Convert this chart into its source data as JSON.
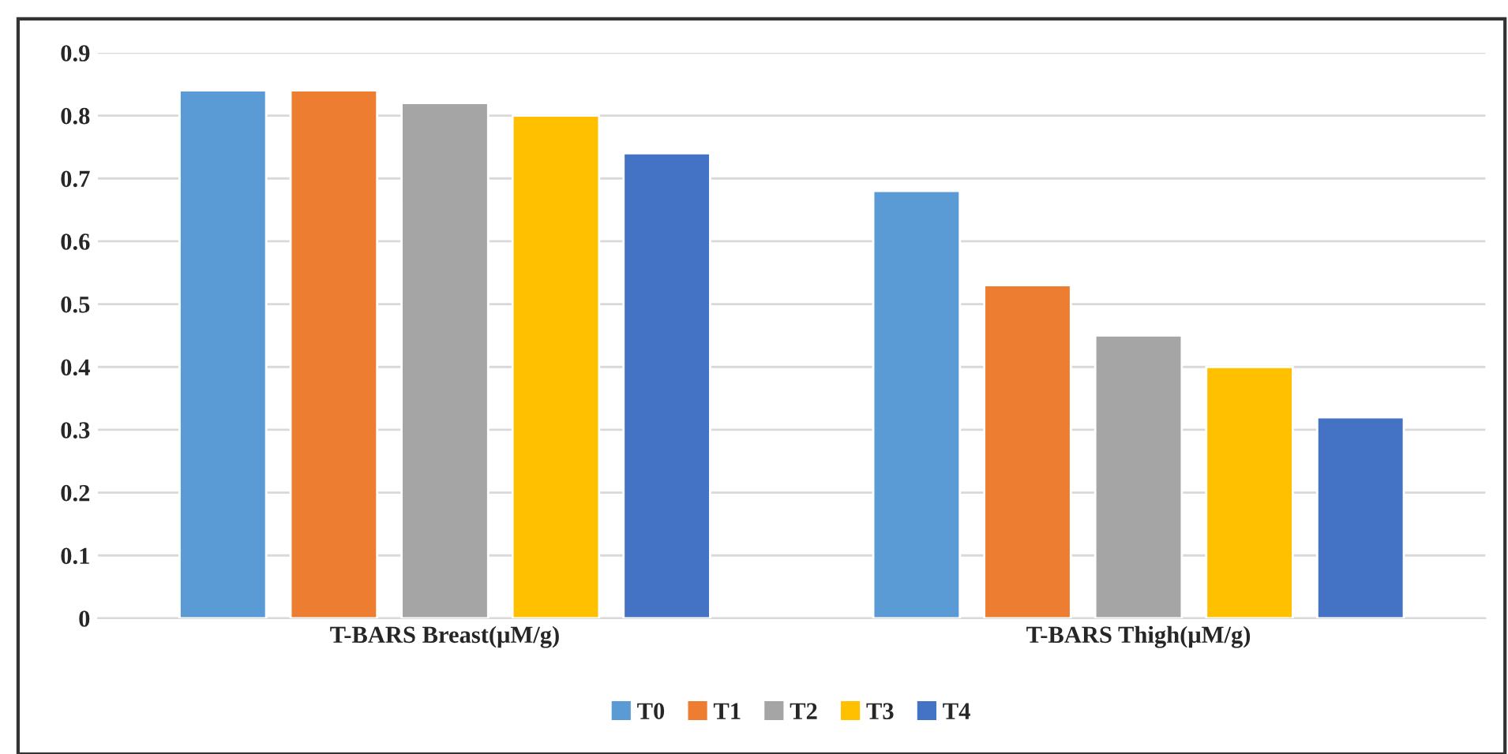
{
  "chart_data": {
    "type": "bar",
    "categories": [
      "T-BARS Breast(μM/g)",
      "T-BARS Thigh(μM/g)"
    ],
    "series": [
      {
        "name": "T0",
        "color": "#5b9bd5",
        "values": [
          0.84,
          0.68
        ]
      },
      {
        "name": "T1",
        "color": "#ed7d31",
        "values": [
          0.84,
          0.53
        ]
      },
      {
        "name": "T2",
        "color": "#a5a5a5",
        "values": [
          0.82,
          0.45
        ]
      },
      {
        "name": "T3",
        "color": "#ffc000",
        "values": [
          0.8,
          0.4
        ]
      },
      {
        "name": "T4",
        "color": "#4472c4",
        "values": [
          0.74,
          0.32
        ]
      }
    ],
    "ylim": [
      0,
      0.9
    ],
    "yticks": [
      0,
      0.1,
      0.2,
      0.3,
      0.4,
      0.5,
      0.6,
      0.7,
      0.8,
      0.9
    ],
    "grid": "y",
    "legend": "bottom"
  }
}
